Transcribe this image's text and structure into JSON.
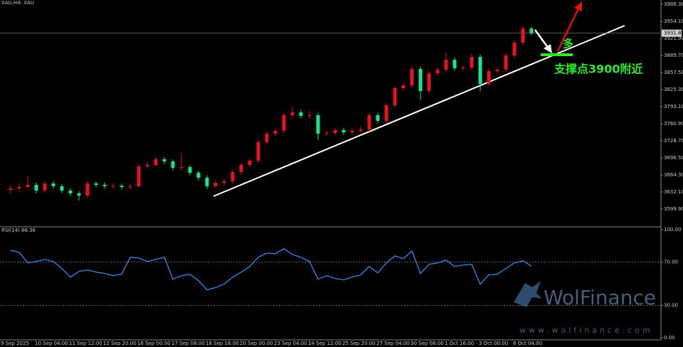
{
  "chart_data": [
    {
      "type": "candlestick",
      "title": "XAU,H4: XAU",
      "up_color": "#e8141c",
      "down_color": "#19e68c",
      "categories": [
        "9 Sep 2025",
        null,
        null,
        null,
        "10 Sep 04:00",
        null,
        null,
        null,
        "11 Sep 12:00",
        null,
        null,
        null,
        "12 Sep 20:00",
        null,
        null,
        null,
        "16 Sep 00:00",
        null,
        null,
        null,
        "17 Sep 08:00",
        null,
        null,
        null,
        "18 Sep 16:00",
        null,
        null,
        null,
        "20 Sep 00:00",
        null,
        null,
        null,
        "23 Sep 04:00",
        null,
        null,
        null,
        "24 Sep 12:00",
        null,
        null,
        null,
        "25 Sep 20:00",
        null,
        null,
        null,
        "27 Sep 04:00",
        null,
        null,
        null,
        "30 Sep 08:00",
        null,
        null,
        null,
        "1 Oct 16:00",
        null,
        null,
        null,
        "3 Oct 00:00",
        null,
        null,
        null,
        "6 Oct 04:00",
        null
      ],
      "open": [
        3636.0,
        3638.9,
        3641.5,
        3645.6,
        3634.8,
        3648.2,
        3642.9,
        3634.8,
        3629.5,
        3625.4,
        3648.2,
        3645.6,
        3642.9,
        3643.8,
        3641.5,
        3642.9,
        3680.4,
        3683.1,
        3693.9,
        3689.8,
        3677.7,
        3679.1,
        3668.4,
        3659.0,
        3642.9,
        3649.6,
        3652.3,
        3669.7,
        3683.1,
        3691.2,
        3726.1,
        3742.2,
        3747.5,
        3777.0,
        3782.4,
        3775.7,
        3777.0,
        3742.2,
        3743.5,
        3748.9,
        3744.8,
        3747.5,
        3750.2,
        3777.0,
        3766.3,
        3795.8,
        3828.0,
        3833.4,
        3864.3,
        3822.7,
        3856.2,
        3862.9,
        3881.7,
        3865.6,
        3866.9,
        3887.1,
        3836.1,
        3860.2,
        3862.9,
        3889.7,
        3913.9,
        3940.7
      ],
      "high": [
        3645.0,
        3647.2,
        3662.0,
        3650.1,
        3653.0,
        3652.4,
        3646.8,
        3639.1,
        3633.8,
        3653.0,
        3652.0,
        3649.8,
        3648.0,
        3647.6,
        3647.3,
        3684.6,
        3687.9,
        3699.0,
        3698.2,
        3693.5,
        3706.0,
        3683.0,
        3672.6,
        3663.8,
        3654.0,
        3656.8,
        3674.2,
        3687.5,
        3695.4,
        3730.5,
        3746.9,
        3752.0,
        3781.5,
        3792.0,
        3787.0,
        3785.0,
        3781.3,
        3748.0,
        3753.2,
        3753.4,
        3752.0,
        3755.0,
        3781.5,
        3781.4,
        3800.0,
        3832.4,
        3838.0,
        3868.8,
        3868.9,
        3860.6,
        3867.4,
        3895.0,
        3886.0,
        3871.4,
        3892.0,
        3891.5,
        3864.6,
        3867.5,
        3894.1,
        3918.3,
        3946.0,
        3944.0
      ],
      "low": [
        3630.1,
        3634.0,
        3637.8,
        3629.5,
        3631.2,
        3638.0,
        3630.0,
        3624.6,
        3616.0,
        3621.7,
        3641.0,
        3638.5,
        3638.2,
        3637.0,
        3636.8,
        3640.0,
        3676.0,
        3679.8,
        3685.0,
        3672.9,
        3673.0,
        3663.8,
        3654.1,
        3638.0,
        3638.4,
        3645.0,
        3648.0,
        3665.0,
        3679.0,
        3687.0,
        3721.8,
        3737.6,
        3743.0,
        3772.1,
        3771.2,
        3770.5,
        3730.0,
        3737.5,
        3739.0,
        3740.2,
        3740.4,
        3743.0,
        3746.0,
        3761.9,
        3762.0,
        3791.5,
        3823.6,
        3829.0,
        3806.0,
        3818.4,
        3851.8,
        3858.4,
        3861.2,
        3861.0,
        3862.5,
        3822.0,
        3831.8,
        3855.8,
        3858.5,
        3885.3,
        3909.5,
        3927.5
      ],
      "close": [
        3638.9,
        3641.5,
        3645.6,
        3634.8,
        3648.2,
        3642.9,
        3634.8,
        3629.5,
        3625.4,
        3648.2,
        3645.6,
        3642.9,
        3643.8,
        3641.5,
        3642.9,
        3680.4,
        3683.1,
        3693.9,
        3689.8,
        3677.7,
        3679.1,
        3668.4,
        3659.0,
        3642.9,
        3649.6,
        3652.3,
        3669.7,
        3683.1,
        3691.2,
        3726.1,
        3742.2,
        3747.5,
        3777.0,
        3782.4,
        3775.7,
        3777.0,
        3742.2,
        3743.5,
        3748.9,
        3744.8,
        3747.5,
        3750.2,
        3777.0,
        3766.3,
        3795.8,
        3828.0,
        3833.4,
        3864.3,
        3822.7,
        3856.2,
        3862.9,
        3881.7,
        3865.6,
        3866.9,
        3887.1,
        3836.1,
        3860.2,
        3862.9,
        3889.7,
        3913.9,
        3940.7,
        3931.8
      ],
      "ylim": [
        3567.7,
        3994.4
      ],
      "yticks": [
        {
          "value": 3986.3,
          "label": "3986.30"
        },
        {
          "value": 3954.1,
          "label": "3954.10"
        },
        {
          "value": 3921.9,
          "label": "3921.90"
        },
        {
          "value": 3889.7,
          "label": "3889.70"
        },
        {
          "value": 3857.5,
          "label": "3857.50"
        },
        {
          "value": 3825.3,
          "label": "3825.30"
        },
        {
          "value": 3793.1,
          "label": "3793.10"
        },
        {
          "value": 3760.9,
          "label": "3760.90"
        },
        {
          "value": 3728.7,
          "label": "3728.70"
        },
        {
          "value": 3696.5,
          "label": "3696.50"
        },
        {
          "value": 3664.3,
          "label": "3664.30"
        },
        {
          "value": 3632.1,
          "label": "3632.10"
        },
        {
          "value": 3599.9,
          "label": "3599.90"
        }
      ],
      "last_price": {
        "value": 3931.82,
        "label": "3931.82"
      },
      "annotations": [
        "多",
        "支撑点3900附近"
      ]
    },
    {
      "type": "line",
      "title": "RSI(14) 66.36",
      "color": "#3d86e8",
      "values": [
        81.0,
        79.1,
        69.3,
        70.6,
        72.5,
        70.6,
        64.1,
        56.2,
        61.4,
        62.7,
        60.8,
        59.5,
        57.5,
        58.8,
        74.5,
        73.9,
        70.6,
        72.5,
        74.5,
        54.2,
        57.5,
        58.8,
        52.9,
        44.4,
        46.4,
        49.7,
        56.2,
        60.8,
        66.0,
        74.5,
        78.4,
        77.8,
        82.4,
        77.1,
        74.5,
        70.6,
        54.2,
        57.5,
        54.9,
        53.6,
        56.2,
        58.2,
        66.0,
        60.1,
        69.3,
        75.8,
        73.2,
        80.4,
        59.5,
        68.0,
        69.3,
        71.9,
        66.0,
        67.3,
        68.0,
        49.7,
        58.2,
        58.8,
        64.1,
        69.3,
        71.2,
        66.36
      ],
      "ylim": [
        -1.9,
        102
      ],
      "yticks": [
        {
          "value": 100,
          "label": "100.00"
        },
        {
          "value": 70,
          "label": "70.00"
        },
        {
          "value": 30,
          "label": "30.00"
        },
        {
          "value": 0,
          "label": "0.00"
        }
      ],
      "levels": [
        70,
        30
      ]
    }
  ],
  "watermark": {
    "brand": "WolFinance",
    "url": "www.wolfinance.com"
  }
}
